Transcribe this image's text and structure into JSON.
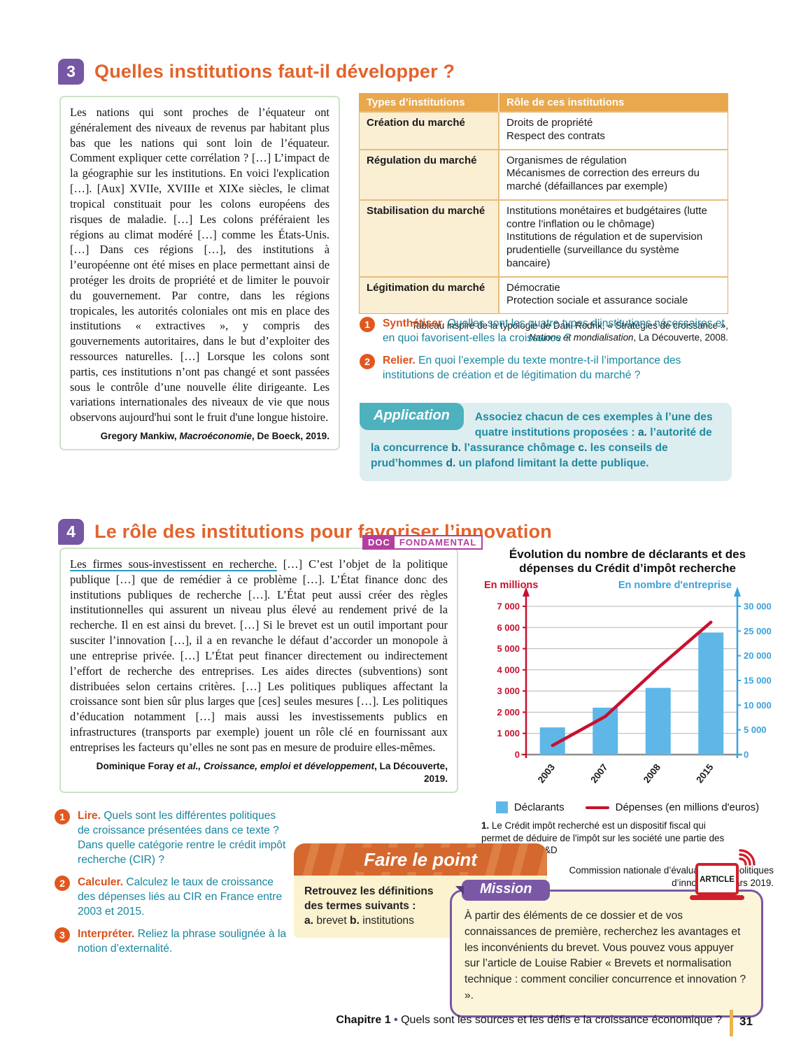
{
  "section3": {
    "number": "3",
    "title": "Quelles institutions faut-il développer ?",
    "quote": {
      "text": "Les nations qui sont proches de l’équateur ont généralement des niveaux de revenus par habitant plus bas que les nations qui sont loin de l’équateur. Comment expliquer cette corrélation ? […] L’impact de la géographie sur les institutions. En voici l'explication […]. [Aux] XVIIe, XVIIIe et XIXe siècles, le climat tropical constituait pour les colons européens des risques de maladie. […] Les colons préféraient les régions au climat modéré […] comme les États-Unis. […] Dans ces régions […], des institutions à l’européenne ont été mises en place permettant ainsi de protéger les droits de propriété et de limiter le pouvoir du gouvernement. Par contre, dans les régions tropicales, les autorités coloniales ont mis en place des institutions « extractives », y compris des gouvernements autoritaires, dans le but d’exploiter des ressources naturelles. […] Lorsque les colons sont partis, ces institutions n’ont pas changé et sont passées sous le contrôle d’une nouvelle élite dirigeante. Les variations internationales des niveaux de vie que nous observons aujourd'hui sont le fruit d'une longue histoire.",
      "source_pre": "Gregory Mankiw, ",
      "source_italic": "Macroéconomie",
      "source_end": ", De Boeck, 2019."
    },
    "table": {
      "headers": [
        "Types d’institutions",
        "Rôle de ces institutions"
      ],
      "rows": [
        {
          "type": "Création du marché",
          "roles": [
            "Droits de propriété",
            "Respect des contrats"
          ]
        },
        {
          "type": "Régulation du marché",
          "roles": [
            "Organismes de régulation",
            "Mécanismes de correction des erreurs du marché (défaillances par exemple)"
          ]
        },
        {
          "type": "Stabilisation du marché",
          "roles": [
            "Institutions monétaires et budgétaires (lutte contre l’inflation ou le chômage)",
            "Institutions de régulation et de supervision prudentielle (surveillance du système bancaire)"
          ]
        },
        {
          "type": "Légitimation du marché",
          "roles": [
            "Démocratie",
            "Protection sociale et assurance sociale"
          ]
        }
      ],
      "caption_line1": "Tableau inspiré de la typologie de Dani Rodrik, « Stratégies de croissance »,",
      "caption_italic": "Nations et mondialisation",
      "caption_end": ", La Découverte, 2008."
    },
    "questions": [
      {
        "num": "1",
        "verb": "Synthétiser.",
        "text": " Quelles sont les quatre types d’institutions nécessaires et en quoi favorisent-elles la croissance ?"
      },
      {
        "num": "2",
        "verb": "Relier.",
        "text": " En quoi l’exemple du texte montre-t-il l’importance des institutions de création et de légitimation du marché ?"
      }
    ],
    "application": {
      "tab": "Application",
      "intro": "Associez chacun de ces exemples à l’une des quatre institutions proposées : ",
      "items": [
        {
          "letter": "a.",
          "text": " l’autorité de la concurrence "
        },
        {
          "letter": "b.",
          "text": " l’assurance chômage "
        },
        {
          "letter": "c.",
          "text": " les conseils de prud’hommes "
        },
        {
          "letter": "d.",
          "text": " un plafond limitant la dette publique."
        }
      ]
    }
  },
  "section4": {
    "number": "4",
    "title": "Le rôle des institutions pour favoriser l’innovation",
    "doc_badge": {
      "doc": "DOC",
      "label": "FONDAMENTAL"
    },
    "quote": {
      "underlined": "Les firmes sous-investissent en recherche.",
      "rest": " […] C’est l’objet de la politique publique […] que de remédier à ce problème […]. L’État finance donc des institutions publiques de recherche […]. L’État peut aussi créer des règles institutionnelles qui assurent un niveau plus élevé au rendement privé de la recherche. Il en est ainsi du brevet. […] Si le brevet est un outil important pour susciter l’innovation […], il a en revanche le défaut d’accorder un monopole à une entreprise privée. […] L’État peut financer directement ou indirectement l’effort de recherche des entreprises. Les aides directes (subventions) sont distribuées selon certains critères. […] Les politiques publiques affectant la croissance sont bien sûr plus larges que [ces] seules mesures […]. Les politiques d’éducation notamment […] mais aussi les investissements publics en infrastructures (transports par exemple) jouent un rôle clé en fournissant aux entreprises les facteurs qu’elles ne sont pas en mesure de produire elles-mêmes.",
      "source_pre": "Dominique Foray ",
      "source_italic": "et al., Croissance, emploi et développement",
      "source_end": ", La Découverte, 2019."
    },
    "questions": [
      {
        "num": "1",
        "verb": "Lire.",
        "text": " Quels sont les différentes politiques de croissance présentées dans ce texte ? Dans quelle catégorie rentre le crédit impôt recherche (CIR) ?"
      },
      {
        "num": "2",
        "verb": "Calculer.",
        "text": " Calculez le taux de croissance des dépenses liés au CIR en France entre 2003 et 2015."
      },
      {
        "num": "3",
        "verb": "Interpréter.",
        "text": " Reliez la phrase soulignée à la notion d’externalité."
      }
    ],
    "chart_note_num": "1.",
    "chart_note_text": " Le Crédit impôt recherché est un dispositif fiscal qui permet de déduire de l'impôt sur les société une partie des dépenses de R&D",
    "chart_source_line1": "Commission nationale d’évaluation des politiques",
    "chart_source_line2": "d’innovation,  mars 2019.",
    "faire_le_point": {
      "title": "Faire le point",
      "line1": "Retrouvez les définitions",
      "line2": "des termes suivants :",
      "items": [
        {
          "letter": "a.",
          "word": " brevet "
        },
        {
          "letter": "b.",
          "word": " institutions"
        }
      ]
    },
    "mission": {
      "tab": "Mission",
      "text": "À partir des éléments de ce dossier et de vos connaissances de première, recherchez les avantages et les inconvénients du brevet. Vous pouvez vous appuyer sur l’article de Louise Rabier « Brevets et normalisation technique : comment concilier concurrence et innovation ? »."
    },
    "article_label": "ARTICLE"
  },
  "chart_data": {
    "type": "bar",
    "title": "Évolution du nombre de déclarants et des dépenses du Crédit d’impôt recherche",
    "categories": [
      "2003",
      "2007",
      "2008",
      "2015"
    ],
    "series": [
      {
        "name": "Déclarants",
        "type": "bar",
        "axis": "right",
        "values": [
          5500,
          9500,
          13500,
          24700
        ],
        "color": "#5fb7e8"
      },
      {
        "name": "Dépenses (en millions d'euros)",
        "type": "line",
        "axis": "left",
        "values": [
          430,
          1800,
          4100,
          6250
        ],
        "color": "#c8102e"
      }
    ],
    "left_axis": {
      "label": "En millions",
      "min": 0,
      "max": 7000,
      "step": 1000,
      "color": "#c8102e"
    },
    "right_axis": {
      "label": "En nombre d'entreprise",
      "min": 0,
      "max": 30000,
      "step": 5000,
      "color": "#3aa3dc"
    },
    "grid": true,
    "legend_position": "bottom"
  },
  "footer": {
    "chapter": "Chapitre 1",
    "sep": " • ",
    "title": "Quels sont les sources et les défis   e la croissance économique ?",
    "page": "31"
  }
}
